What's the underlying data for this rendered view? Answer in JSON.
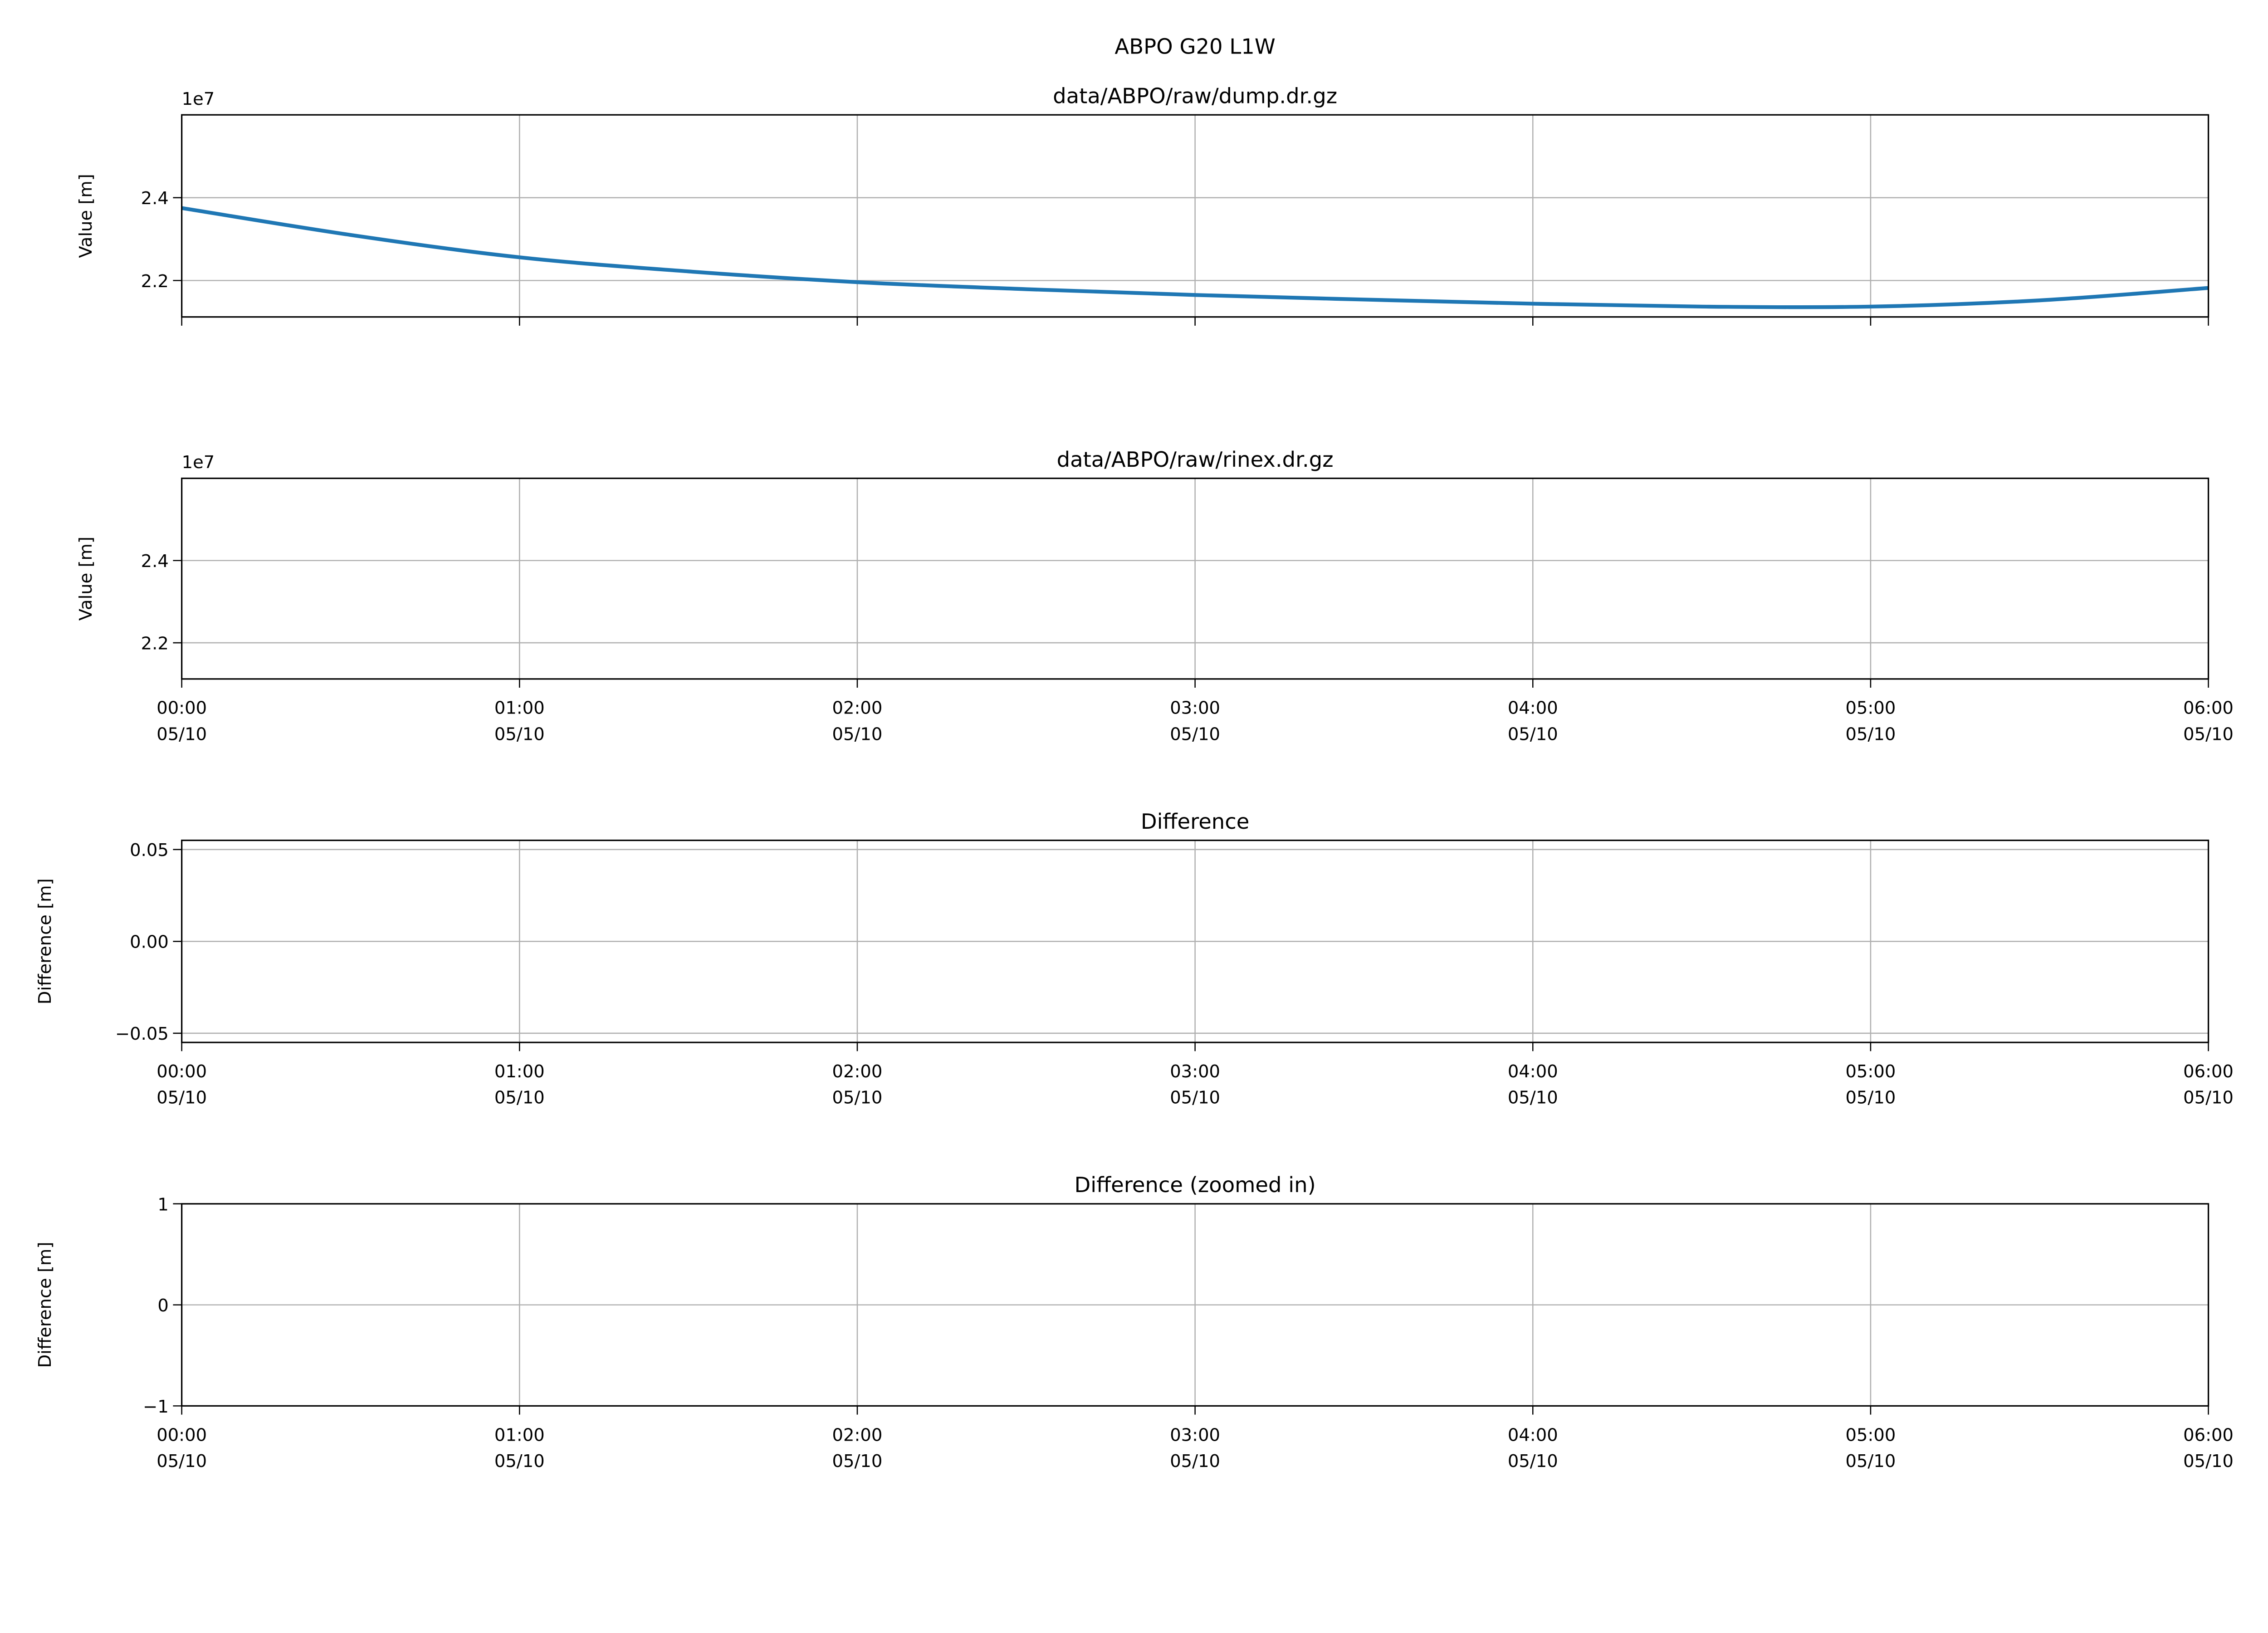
{
  "chart_data": [
    {
      "type": "line",
      "suptitle": "ABPO G20 L1W",
      "title": "data/ABPO/raw/dump.dr.gz",
      "ylabel": "Value [m]",
      "offset_label": "1e7",
      "ylim": [
        2.112,
        2.6
      ],
      "yticks": [
        2.2,
        2.4
      ],
      "ytick_labels": [
        "2.2",
        "2.4"
      ],
      "show_xtick_labels": false,
      "grid": true,
      "line_color": "#1f77b4",
      "series": [
        {
          "x": [
            "00:00",
            "00:30",
            "01:00",
            "01:30",
            "02:00",
            "02:30",
            "03:00",
            "03:30",
            "04:00",
            "04:30",
            "05:00",
            "05:30",
            "06:00"
          ],
          "y": [
            2.375,
            2.31,
            2.256,
            2.222,
            2.196,
            2.179,
            2.165,
            2.154,
            2.144,
            2.137,
            2.137,
            2.152,
            2.182
          ]
        }
      ]
    },
    {
      "type": "line",
      "title": "data/ABPO/raw/rinex.dr.gz",
      "ylabel": "Value [m]",
      "offset_label": "1e7",
      "ylim": [
        2.112,
        2.6
      ],
      "yticks": [
        2.2,
        2.4
      ],
      "ytick_labels": [
        "2.2",
        "2.4"
      ],
      "show_xtick_labels": true,
      "grid": true,
      "series": []
    },
    {
      "type": "line",
      "title": "Difference",
      "ylabel": "Difference [m]",
      "ylim": [
        -0.055,
        0.055
      ],
      "yticks": [
        -0.05,
        0,
        0.05
      ],
      "ytick_labels": [
        "−0.05",
        "0.00",
        "0.05"
      ],
      "show_xtick_labels": true,
      "grid": true,
      "series": []
    },
    {
      "type": "line",
      "title": "Difference (zoomed in)",
      "ylabel": "Difference [m]",
      "ylim": [
        -1,
        1
      ],
      "yticks": [
        -1,
        0,
        1
      ],
      "ytick_labels": [
        "−1",
        "0",
        "1"
      ],
      "show_xtick_labels": true,
      "grid": true,
      "series": []
    }
  ],
  "xaxis": {
    "range": [
      "00:00",
      "06:00"
    ],
    "ticks": [
      "00:00",
      "01:00",
      "02:00",
      "03:00",
      "04:00",
      "05:00",
      "06:00"
    ],
    "date_label": "05/10"
  }
}
